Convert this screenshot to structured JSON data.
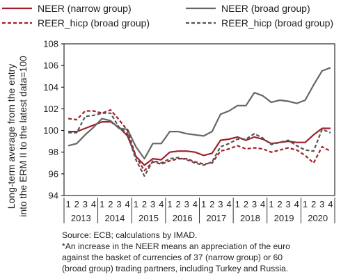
{
  "chart_data": {
    "type": "line",
    "ylabel_line1": "Long-term average from the entry",
    "ylabel_line2": "into the ERM II to the latest data=100",
    "ylim": [
      94,
      108
    ],
    "yticks": [
      "94",
      "96",
      "98",
      "100",
      "102",
      "104",
      "106",
      "108"
    ],
    "quarter_labels": [
      "1",
      "2",
      "3",
      "4"
    ],
    "years": [
      "2013",
      "2014",
      "2015",
      "2016",
      "2017",
      "2018",
      "2019",
      "2020"
    ],
    "grid": false,
    "legend_position": "top",
    "series": [
      {
        "name": "NEER (narrow group)",
        "color": "#a0202a",
        "dash": "solid",
        "values": [
          99.9,
          99.9,
          100.2,
          100.5,
          100.8,
          100.8,
          100.3,
          99.5,
          97.6,
          96.8,
          97.4,
          97.3,
          98.0,
          98.1,
          98.1,
          98.0,
          97.7,
          97.9,
          99.1,
          99.2,
          99.4,
          99.1,
          99.4,
          99.2,
          98.8,
          98.9,
          99.0,
          98.9,
          98.9,
          99.6,
          100.2,
          100.2
        ]
      },
      {
        "name": "NEER (broad group)",
        "color": "#666666",
        "dash": "solid",
        "values": [
          98.6,
          98.8,
          99.6,
          100.3,
          101.1,
          100.9,
          100.2,
          100.1,
          98.5,
          97.4,
          98.8,
          98.8,
          99.9,
          99.9,
          99.7,
          99.6,
          99.5,
          99.9,
          101.5,
          101.8,
          102.3,
          102.3,
          103.5,
          103.2,
          102.6,
          102.8,
          102.7,
          102.5,
          102.8,
          104.2,
          105.5,
          105.8
        ]
      },
      {
        "name": "REER_hicp (broad group)",
        "color": "#a0202a",
        "dash": "dashed",
        "values": [
          101.1,
          101.0,
          101.8,
          101.8,
          101.6,
          101.9,
          101.0,
          100.0,
          97.6,
          96.3,
          97.1,
          96.9,
          97.2,
          97.4,
          97.4,
          97.1,
          96.9,
          97.0,
          98.1,
          98.3,
          98.6,
          98.3,
          98.4,
          98.3,
          98.0,
          98.2,
          98.4,
          98.2,
          97.7,
          97.0,
          98.5,
          98.1
        ]
      },
      {
        "name": "REER_hicp (broad group)",
        "color": "#555555",
        "dash": "dashed",
        "values": [
          99.8,
          99.8,
          101.3,
          101.4,
          101.6,
          101.6,
          100.3,
          99.7,
          97.3,
          95.8,
          97.2,
          97.0,
          97.4,
          97.5,
          97.3,
          97.0,
          96.8,
          97.1,
          98.5,
          98.8,
          99.2,
          99.2,
          99.7,
          99.3,
          98.7,
          98.9,
          99.1,
          98.6,
          98.2,
          98.1,
          100.1,
          99.8
        ]
      }
    ]
  },
  "notes": {
    "source": "Source: ECB; calculations by IMAD.",
    "footnote_line1": "*An increase in the NEER means an appreciation of the euro",
    "footnote_line2": "against the basket of currencies of 37 (narrow group) or 60",
    "footnote_line3": "(broad group) trading partners, including Turkey and Russia."
  }
}
